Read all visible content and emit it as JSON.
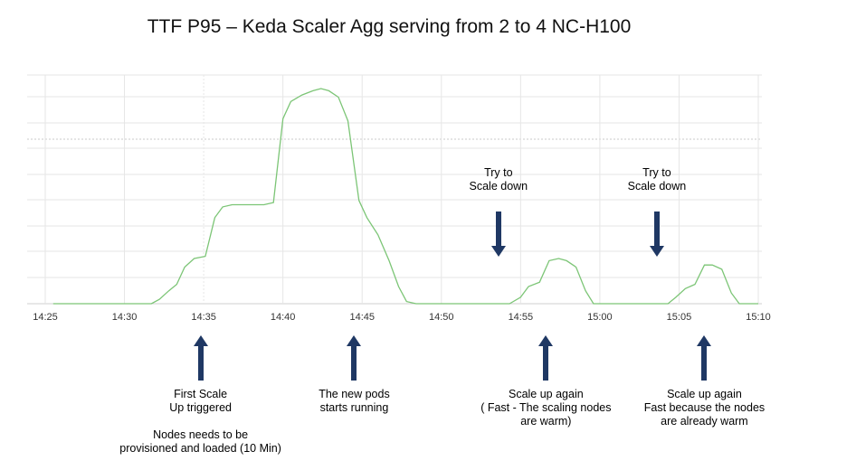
{
  "chart_data": {
    "type": "line",
    "title": "TTF P95 – Keda Scaler Agg serving from 2 to 4 NC-H100",
    "xlabel": "",
    "ylabel": "",
    "x_ticks": [
      "14:25",
      "14:30",
      "14:35",
      "14:40",
      "14:45",
      "14:50",
      "14:55",
      "15:00",
      "15:05",
      "15:10"
    ],
    "x_tick_minutes": [
      0,
      5,
      10,
      15,
      20,
      25,
      30,
      35,
      40,
      45
    ],
    "xlim_minutes": [
      0,
      45
    ],
    "ylim": [
      0,
      100
    ],
    "y_ticks_shown": false,
    "grid": true,
    "series": [
      {
        "color": "#7cc576",
        "points": [
          [
            0.5,
            0
          ],
          [
            6.7,
            0
          ],
          [
            7.2,
            2
          ],
          [
            7.8,
            6
          ],
          [
            8.3,
            9
          ],
          [
            8.8,
            17
          ],
          [
            9.4,
            21
          ],
          [
            10.1,
            22
          ],
          [
            10.7,
            40
          ],
          [
            11.2,
            45
          ],
          [
            11.8,
            46
          ],
          [
            12.5,
            46
          ],
          [
            13.8,
            46
          ],
          [
            14.4,
            47
          ],
          [
            15.0,
            86
          ],
          [
            15.5,
            94
          ],
          [
            16.2,
            97
          ],
          [
            16.9,
            99
          ],
          [
            17.4,
            100
          ],
          [
            17.9,
            99
          ],
          [
            18.5,
            96
          ],
          [
            19.1,
            85
          ],
          [
            19.8,
            48
          ],
          [
            20.3,
            40
          ],
          [
            21.0,
            32
          ],
          [
            21.7,
            20
          ],
          [
            22.3,
            8
          ],
          [
            22.8,
            1
          ],
          [
            23.4,
            0
          ],
          [
            29.3,
            0
          ],
          [
            30.0,
            3
          ],
          [
            30.5,
            8
          ],
          [
            31.2,
            10
          ],
          [
            31.8,
            20
          ],
          [
            32.4,
            21
          ],
          [
            32.9,
            20
          ],
          [
            33.5,
            17
          ],
          [
            34.1,
            6
          ],
          [
            34.6,
            0
          ],
          [
            39.3,
            0
          ],
          [
            39.8,
            3
          ],
          [
            40.4,
            7
          ],
          [
            41.0,
            9
          ],
          [
            41.6,
            18
          ],
          [
            42.1,
            18
          ],
          [
            42.7,
            16
          ],
          [
            43.3,
            5
          ],
          [
            43.8,
            0
          ],
          [
            45.0,
            0
          ]
        ]
      }
    ]
  },
  "annotations": [
    {
      "text": "Try to\nScale down",
      "arrow": "down",
      "at_minute": 28.6
    },
    {
      "text": "Try to\nScale down",
      "arrow": "down",
      "at_minute": 38.6
    },
    {
      "text": "First Scale\nUp triggered\n\nNodes needs to be\nprovisioned and loaded (10 Min)",
      "arrow": "up",
      "at_minute": 9.8
    },
    {
      "text": "The new pods\nstarts running",
      "arrow": "up",
      "at_minute": 19.5
    },
    {
      "text": "Scale up again\n( Fast - The scaling nodes\nare warm)",
      "arrow": "up",
      "at_minute": 31.6
    },
    {
      "text": "Scale up again\nFast because the nodes\nare already warm",
      "arrow": "up",
      "at_minute": 41.6
    }
  ],
  "colors": {
    "line": "#7cc576",
    "arrow": "#1f3864",
    "grid": "#e6e6e6"
  }
}
